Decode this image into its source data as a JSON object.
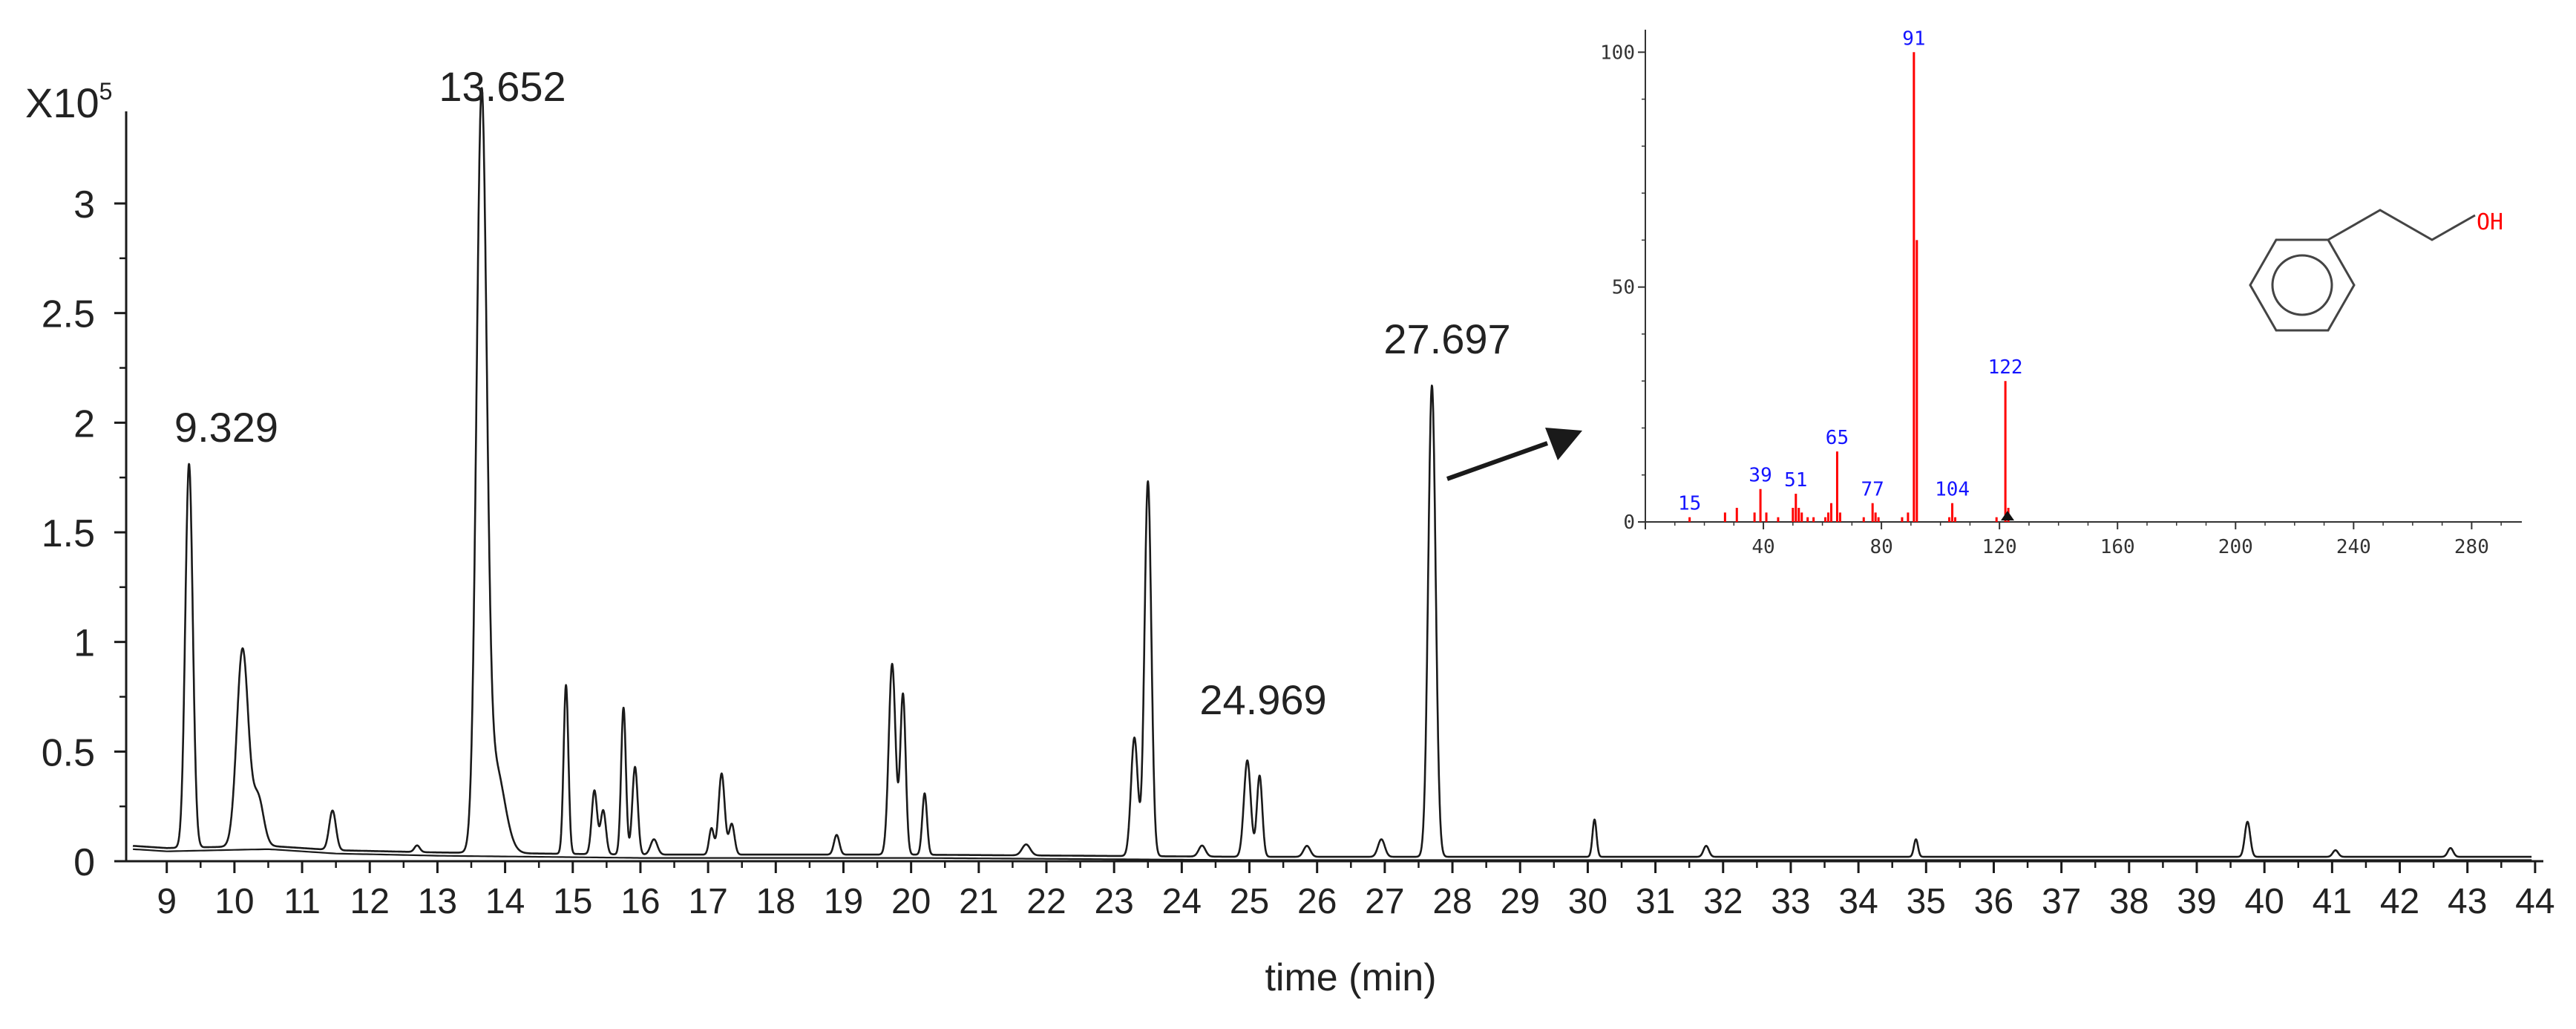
{
  "colors": {
    "trace": "#1a1a1a",
    "axis": "#1a1a1a",
    "ms_peak": "#ff0000",
    "ms_label": "#1414ff",
    "ms_axis": "#333333",
    "arrow": "#1a1a1a"
  },
  "chart_data": [
    {
      "type": "line",
      "title": "",
      "xlabel": "time (min)",
      "ylabel": "",
      "y_multiplier_label": "X10",
      "y_multiplier_exponent": "5",
      "xlim": [
        8.4,
        44.1
      ],
      "ylim": [
        0,
        3.42
      ],
      "x_ticks": [
        9,
        10,
        11,
        12,
        13,
        14,
        15,
        16,
        17,
        18,
        19,
        20,
        21,
        22,
        23,
        24,
        25,
        26,
        27,
        28,
        29,
        30,
        31,
        32,
        33,
        34,
        35,
        36,
        37,
        38,
        39,
        40,
        41,
        42,
        43,
        44
      ],
      "y_ticks": [
        {
          "value": 0,
          "label": "0"
        },
        {
          "value": 0.5,
          "label": "0.5"
        },
        {
          "value": 1,
          "label": "1"
        },
        {
          "value": 1.5,
          "label": "1.5"
        },
        {
          "value": 2,
          "label": "2"
        },
        {
          "value": 2.5,
          "label": "2.5"
        },
        {
          "value": 3,
          "label": "3"
        }
      ],
      "grid": false,
      "baseline": [
        [
          8.5,
          0.07
        ],
        [
          9.0,
          0.06
        ],
        [
          10.5,
          0.07
        ],
        [
          11.5,
          0.05
        ],
        [
          13.0,
          0.04
        ],
        [
          16.0,
          0.03
        ],
        [
          20.0,
          0.03
        ],
        [
          25.0,
          0.02
        ],
        [
          30.0,
          0.02
        ],
        [
          44.0,
          0.02
        ]
      ],
      "series": [
        {
          "peaks": [
            {
              "rt": 9.329,
              "height": 1.75,
              "width": 0.055
            },
            {
              "rt": 10.12,
              "height": 0.9,
              "width": 0.085
            },
            {
              "rt": 10.35,
              "height": 0.22,
              "width": 0.08
            },
            {
              "rt": 11.45,
              "height": 0.18,
              "width": 0.05
            },
            {
              "rt": 12.7,
              "height": 0.03,
              "width": 0.04
            },
            {
              "rt": 13.652,
              "height": 3.34,
              "width": 0.075
            },
            {
              "rt": 13.85,
              "height": 0.4,
              "width": 0.14
            },
            {
              "rt": 14.9,
              "height": 0.77,
              "width": 0.035
            },
            {
              "rt": 15.32,
              "height": 0.29,
              "width": 0.04
            },
            {
              "rt": 15.45,
              "height": 0.2,
              "width": 0.04
            },
            {
              "rt": 15.75,
              "height": 0.67,
              "width": 0.035
            },
            {
              "rt": 15.92,
              "height": 0.4,
              "width": 0.04
            },
            {
              "rt": 16.2,
              "height": 0.07,
              "width": 0.05
            },
            {
              "rt": 17.05,
              "height": 0.12,
              "width": 0.035
            },
            {
              "rt": 17.2,
              "height": 0.37,
              "width": 0.045
            },
            {
              "rt": 17.35,
              "height": 0.14,
              "width": 0.04
            },
            {
              "rt": 18.9,
              "height": 0.09,
              "width": 0.04
            },
            {
              "rt": 19.72,
              "height": 0.87,
              "width": 0.05
            },
            {
              "rt": 19.88,
              "height": 0.73,
              "width": 0.04
            },
            {
              "rt": 20.2,
              "height": 0.28,
              "width": 0.035
            },
            {
              "rt": 21.7,
              "height": 0.05,
              "width": 0.06
            },
            {
              "rt": 23.3,
              "height": 0.54,
              "width": 0.05
            },
            {
              "rt": 23.5,
              "height": 1.71,
              "width": 0.05
            },
            {
              "rt": 24.3,
              "height": 0.05,
              "width": 0.05
            },
            {
              "rt": 24.969,
              "height": 0.44,
              "width": 0.05
            },
            {
              "rt": 25.15,
              "height": 0.37,
              "width": 0.04
            },
            {
              "rt": 25.85,
              "height": 0.05,
              "width": 0.05
            },
            {
              "rt": 26.95,
              "height": 0.08,
              "width": 0.05
            },
            {
              "rt": 27.697,
              "height": 2.15,
              "width": 0.055
            },
            {
              "rt": 30.1,
              "height": 0.17,
              "width": 0.03
            },
            {
              "rt": 31.75,
              "height": 0.05,
              "width": 0.04
            },
            {
              "rt": 34.85,
              "height": 0.08,
              "width": 0.03
            },
            {
              "rt": 39.75,
              "height": 0.16,
              "width": 0.04
            },
            {
              "rt": 41.05,
              "height": 0.03,
              "width": 0.04
            },
            {
              "rt": 42.75,
              "height": 0.04,
              "width": 0.04
            }
          ]
        }
      ],
      "annotations": [
        {
          "x": 9.329,
          "label": "9.329"
        },
        {
          "x": 13.652,
          "label": "13.652"
        },
        {
          "x": 24.969,
          "label": "24.969"
        },
        {
          "x": 27.697,
          "label": "27.697"
        }
      ]
    },
    {
      "type": "bar",
      "title": "",
      "xlabel": "",
      "ylabel": "",
      "xlim": [
        0,
        297
      ],
      "ylim": [
        0,
        104
      ],
      "x_ticks": [
        {
          "value": 0,
          "label": "0"
        },
        {
          "value": 40,
          "label": "40"
        },
        {
          "value": 80,
          "label": "80"
        },
        {
          "value": 120,
          "label": "120"
        },
        {
          "value": 160,
          "label": "160"
        },
        {
          "value": 200,
          "label": "200"
        },
        {
          "value": 240,
          "label": "240"
        },
        {
          "value": 280,
          "label": "280"
        }
      ],
      "y_ticks": [
        {
          "value": 0,
          "label": "0"
        },
        {
          "value": 50,
          "label": "50"
        },
        {
          "value": 100,
          "label": "100"
        }
      ],
      "x": [
        15,
        27,
        31,
        37,
        39,
        41,
        45,
        50,
        51,
        52,
        53,
        55,
        57,
        61,
        62,
        63,
        65,
        66,
        74,
        77,
        78,
        79,
        87,
        89,
        91,
        92,
        103,
        104,
        105,
        119,
        122,
        123
      ],
      "values": [
        1,
        2,
        3,
        2,
        7,
        2,
        1,
        3,
        6,
        3,
        2,
        1,
        1,
        1,
        2,
        4,
        15,
        2,
        1,
        4,
        2,
        1,
        1,
        2,
        100,
        60,
        1,
        4,
        1,
        1,
        30,
        3
      ],
      "peak_labels": [
        {
          "x": 15,
          "label": "15"
        },
        {
          "x": 39,
          "label": "39"
        },
        {
          "x": 51,
          "label": "51"
        },
        {
          "x": 65,
          "label": "65"
        },
        {
          "x": 77,
          "label": "77"
        },
        {
          "x": 91,
          "label": "91"
        },
        {
          "x": 104,
          "label": "104"
        },
        {
          "x": 122,
          "label": "122"
        }
      ],
      "structure_label": "OH"
    }
  ]
}
